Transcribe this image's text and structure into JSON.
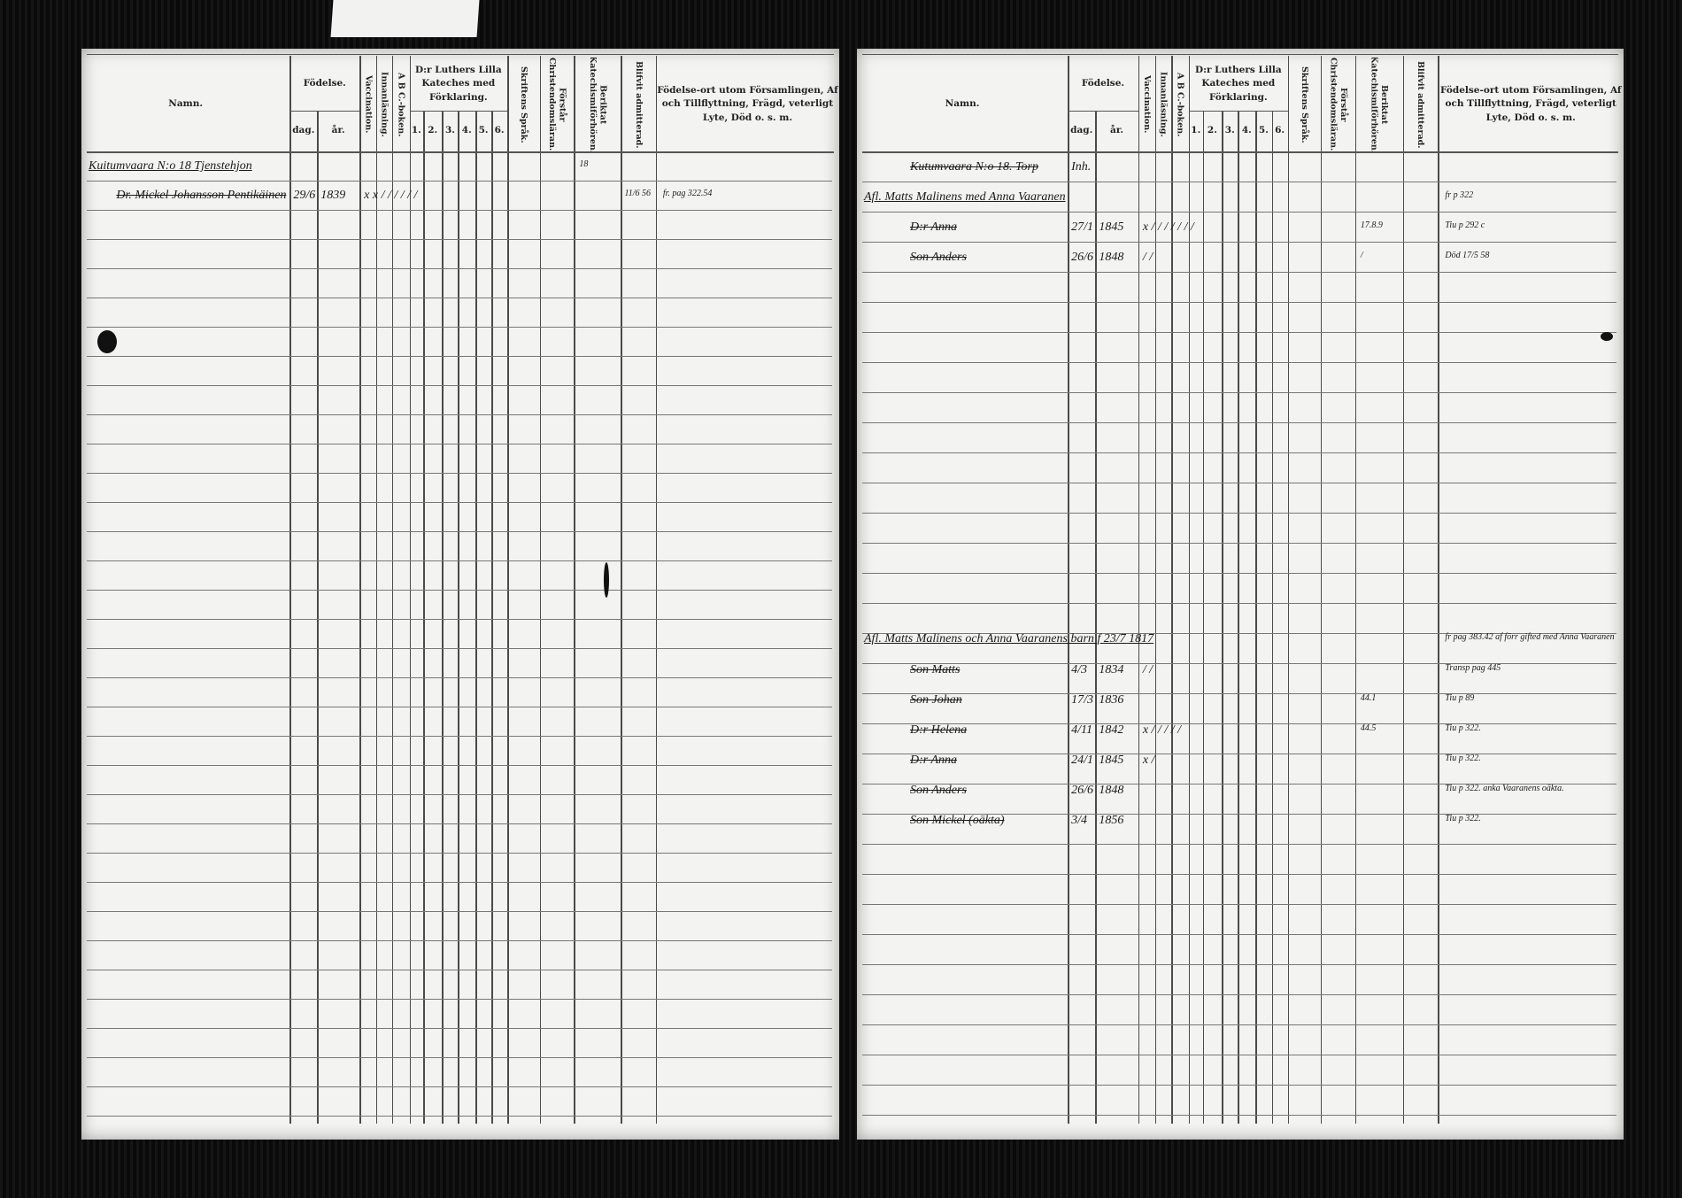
{
  "headers": {
    "namn": "Namn.",
    "fodelse": "Födelse.",
    "dag": "dag.",
    "ar": "år.",
    "vaccination": "Vaccination.",
    "innanlasning": "Innanläsning.",
    "abc": "A B C.-boken.",
    "luther": "D:r Luthers Lilla Kateches med Förklaring.",
    "luther_parts": [
      "1.",
      "2.",
      "3.",
      "4.",
      "5.",
      "6."
    ],
    "skriftens": "Skriftens Språk.",
    "forstar": "Förstår Christendomsläran.",
    "beriktat": "Beriktat Katechismiförhören.",
    "admitterad": "Blifvit admitterad.",
    "notes": "Födelse-ort utom Församlingen, Af och Tillflyttning, Frägd, veterligt Lyte, Död o. s. m."
  },
  "left": {
    "entries": [
      {
        "name": "Kuitumvaara N:o 18 Tjenstehjon",
        "dag": "",
        "ar": "",
        "marks": "",
        "beriktat": "18",
        "admitt": "",
        "notes": ""
      },
      {
        "name": "Dr. Mickel Johansson Pentikäinen",
        "dag": "29/6",
        "ar": "1839",
        "marks": "x x / / / / / /",
        "beriktat": "",
        "admitt": "11/6 56",
        "notes": "fr. pag 322.54"
      }
    ]
  },
  "right": {
    "entries": [
      {
        "name": "Kutumvaara N:o 18. Torp",
        "dag": "Inh.",
        "ar": "",
        "marks": "",
        "beriktat": "",
        "notes": ""
      },
      {
        "name": "Afl. Matts Malinens med Anna Vaaranen",
        "dag": "",
        "ar": "",
        "marks": "",
        "beriktat": "",
        "notes": "fr p 322"
      },
      {
        "name": "D:r Anna",
        "dag": "27/1",
        "ar": "1845",
        "marks": "x / / / / / / /",
        "beriktat": "17.8.9",
        "notes": "Tiu p 292 c"
      },
      {
        "name": "Son Anders",
        "dag": "26/6",
        "ar": "1848",
        "marks": "/ /",
        "beriktat": "/",
        "notes": "Död 17/5 58"
      },
      {
        "name": "Afl. Matts Malinens och Anna Vaaranens barn f 23/7 1817",
        "dag": "",
        "ar": "",
        "marks": "",
        "beriktat": "",
        "notes": "fr pag 383.42 af förr gifted med Anna Vaaranen"
      },
      {
        "name": "Son Matts",
        "dag": "4/3",
        "ar": "1834",
        "marks": "/ /",
        "beriktat": "",
        "notes": "Transp pag 445"
      },
      {
        "name": "Son Johan",
        "dag": "17/3",
        "ar": "1836",
        "marks": "",
        "beriktat": "44.1",
        "notes": "Tiu p 89"
      },
      {
        "name": "D:r Helena",
        "dag": "4/11",
        "ar": "1842",
        "marks": "x / / / / /",
        "beriktat": "44.5",
        "notes": "Tiu p 322."
      },
      {
        "name": "D:r Anna",
        "dag": "24/1",
        "ar": "1845",
        "marks": "x /",
        "beriktat": "",
        "notes": "Tiu p 322."
      },
      {
        "name": "Son Anders",
        "dag": "26/6",
        "ar": "1848",
        "marks": "",
        "beriktat": "",
        "notes": "Tiu p 322. anka Vaaranens oäkta."
      },
      {
        "name": "Son Mickel (oäkta)",
        "dag": "3/4",
        "ar": "1856",
        "marks": "",
        "beriktat": "",
        "notes": "Tiu p 322."
      }
    ]
  }
}
